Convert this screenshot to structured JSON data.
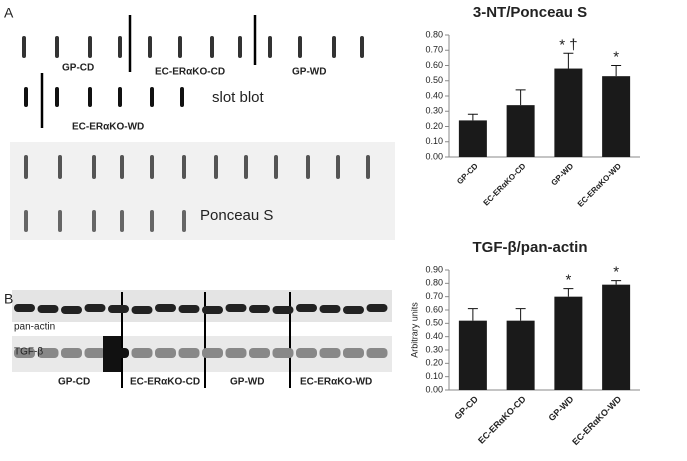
{
  "figure": {
    "panel_a": "A",
    "panel_b": "B",
    "slot_labels": [
      "GP-CD",
      "EC-ERαKO-CD",
      "GP-WD",
      "EC-ERαKO-WD"
    ],
    "slot_blot": "slot blot",
    "ponceau": "Ponceau S",
    "pan_actin": "pan-actin",
    "tgf": "TGF-β",
    "western_labels": [
      "GP-CD",
      "EC-ERαKO-CD",
      "GP-WD",
      "EC-ERαKO-WD"
    ]
  },
  "chart_data": [
    {
      "type": "bar",
      "title": "3-NT/Ponceau S",
      "categories": [
        "GP-CD",
        "EC-ERαKO-CD",
        "GP-WD",
        "EC-ERαKO-WD"
      ],
      "values": [
        0.24,
        0.34,
        0.58,
        0.53
      ],
      "errors": [
        0.04,
        0.1,
        0.1,
        0.07
      ],
      "annotations": [
        null,
        null,
        "* †",
        "*"
      ],
      "color": "#1a1a1a",
      "ylim": [
        0,
        0.8
      ],
      "yticks": [
        {
          "value": 0,
          "label": "0.00"
        },
        {
          "value": 0.1,
          "label": "0.10"
        },
        {
          "value": 0.2,
          "label": "0.20"
        },
        {
          "value": 0.3,
          "label": "0.30"
        },
        {
          "value": 0.4,
          "label": "0.40"
        },
        {
          "value": 0.5,
          "label": "0.50"
        },
        {
          "value": 0.6,
          "label": "0.60"
        },
        {
          "value": 0.7,
          "label": "0.70"
        },
        {
          "value": 0.8,
          "label": "0.80"
        }
      ]
    },
    {
      "type": "bar",
      "title": "TGF-β/pan-actin",
      "ylabel": "Arbitrary units",
      "categories": [
        "GP-CD",
        "EC-ERαKO-CD",
        "GP-WD",
        "EC-ERαKO-WD"
      ],
      "values": [
        0.52,
        0.52,
        0.7,
        0.79
      ],
      "errors": [
        0.09,
        0.09,
        0.06,
        0.03
      ],
      "annotations": [
        null,
        null,
        "*",
        "*"
      ],
      "color": "#1a1a1a",
      "ylim": [
        0,
        0.9
      ],
      "yticks": [
        {
          "value": 0,
          "label": "0.00"
        },
        {
          "value": 0.1,
          "label": "0.10"
        },
        {
          "value": 0.2,
          "label": "0.20"
        },
        {
          "value": 0.3,
          "label": "0.30"
        },
        {
          "value": 0.4,
          "label": "0.40"
        },
        {
          "value": 0.5,
          "label": "0.50"
        },
        {
          "value": 0.6,
          "label": "0.60"
        },
        {
          "value": 0.7,
          "label": "0.70"
        },
        {
          "value": 0.8,
          "label": "0.80"
        },
        {
          "value": 0.9,
          "label": "0.90"
        }
      ]
    }
  ]
}
